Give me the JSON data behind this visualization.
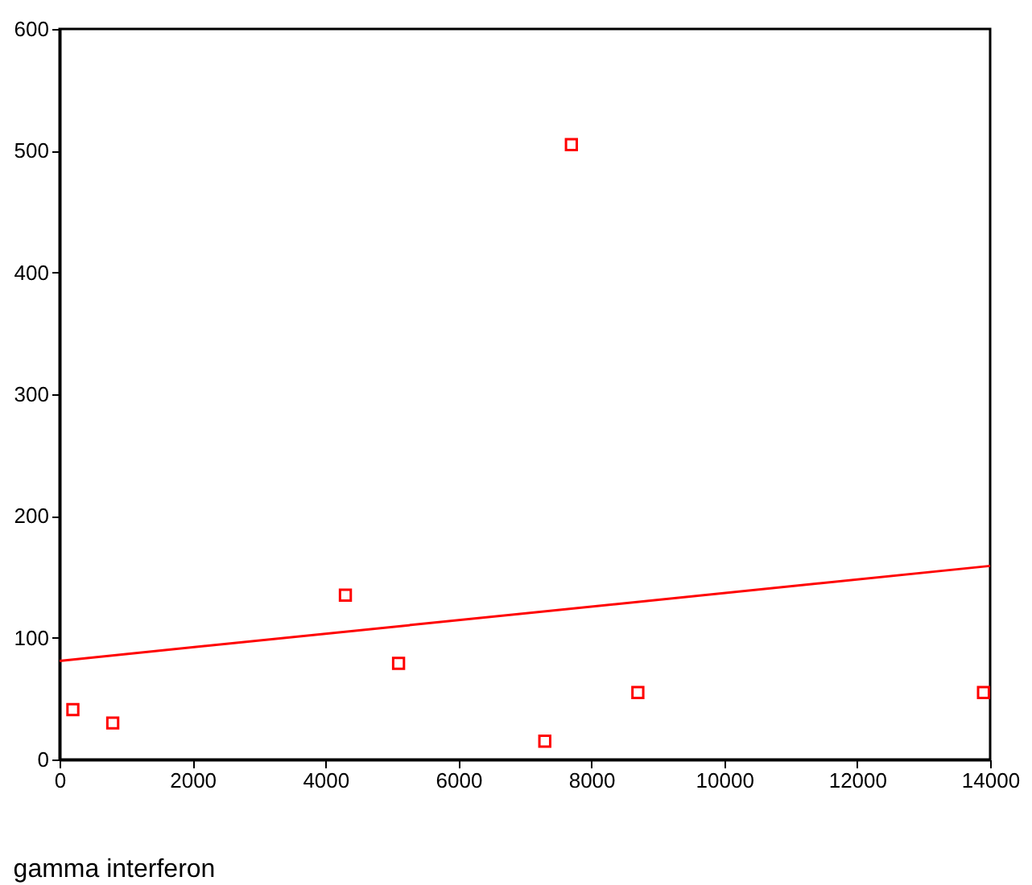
{
  "chart_data": {
    "type": "scatter",
    "xlabel": "gamma interferon",
    "xlim": [
      0,
      14000
    ],
    "xticks": [
      0,
      2000,
      4000,
      6000,
      8000,
      10000,
      12000,
      14000
    ],
    "ylim": [
      0,
      600
    ],
    "yticks": [
      0,
      100,
      200,
      300,
      400,
      500,
      600
    ],
    "grid": false,
    "series": [
      {
        "marker": "square",
        "color": "#ff0000",
        "x": [
          200,
          800,
          4300,
          5100,
          7300,
          7700,
          8700,
          13900
        ],
        "values": [
          41,
          30,
          135,
          79,
          15,
          505,
          55,
          55
        ]
      },
      {
        "type": "line",
        "color": "#ff0000",
        "x": [
          0,
          14000
        ],
        "values": [
          81,
          159
        ]
      }
    ]
  }
}
